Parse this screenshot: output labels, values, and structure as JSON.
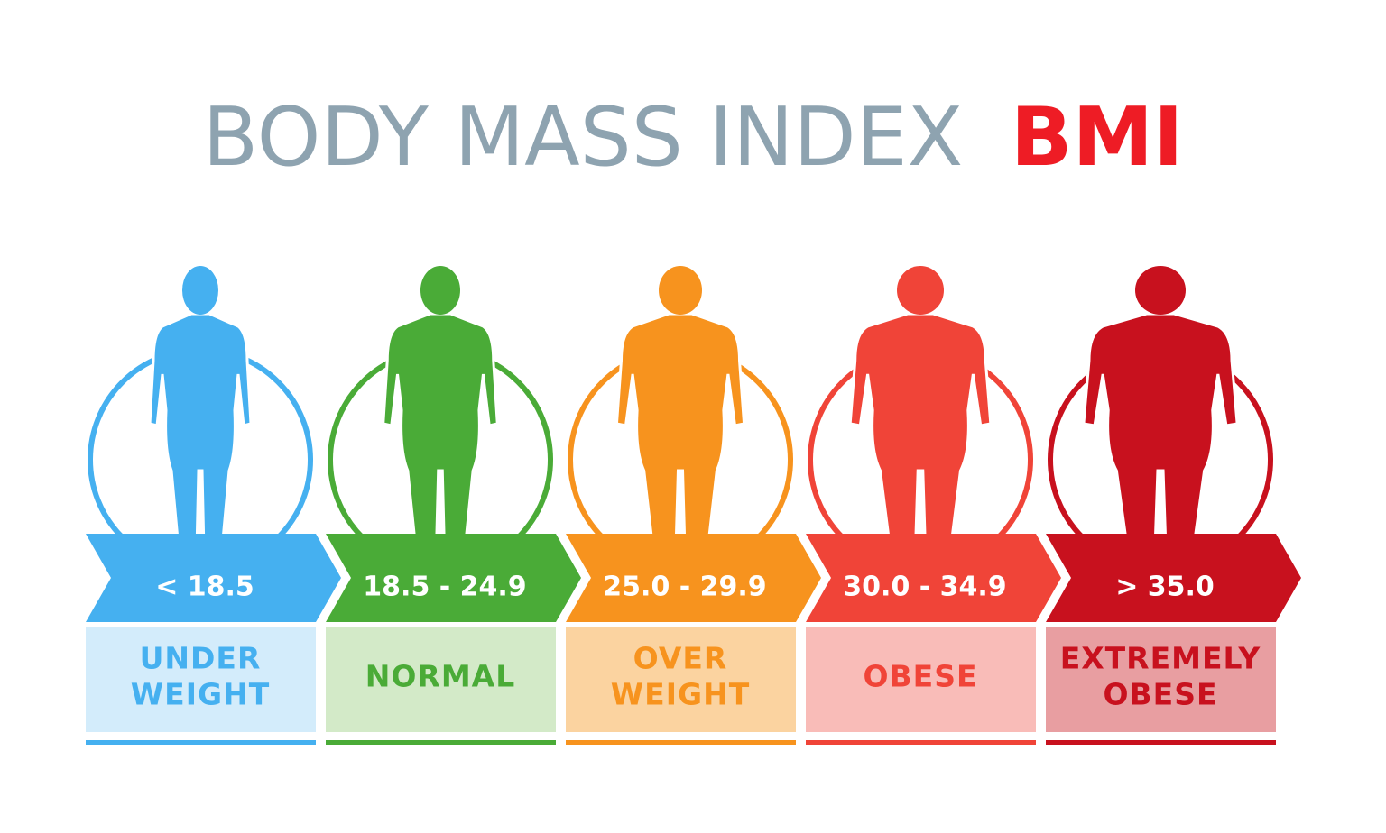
{
  "title": {
    "text": "BODY MASS INDEX",
    "highlight": "BMI"
  },
  "categories": [
    {
      "range": "< 18.5",
      "label": [
        "UNDER",
        "WEIGHT"
      ],
      "color": "#45b0f0",
      "light": "#d3ecfb"
    },
    {
      "range": "18.5 - 24.9",
      "label": [
        "NORMAL"
      ],
      "color": "#4aab37",
      "light": "#d3eac8"
    },
    {
      "range": "25.0 - 29.9",
      "label": [
        "OVER",
        "WEIGHT"
      ],
      "color": "#f7931e",
      "light": "#fbd3a0"
    },
    {
      "range": "30.0 - 34.9",
      "label": [
        "OBESE"
      ],
      "color": "#f04438",
      "light": "#f9bcb8"
    },
    {
      "range": "> 35.0",
      "label": [
        "EXTREMELY",
        "OBESE"
      ],
      "color": "#c8111e",
      "light": "#e89ea1"
    }
  ]
}
